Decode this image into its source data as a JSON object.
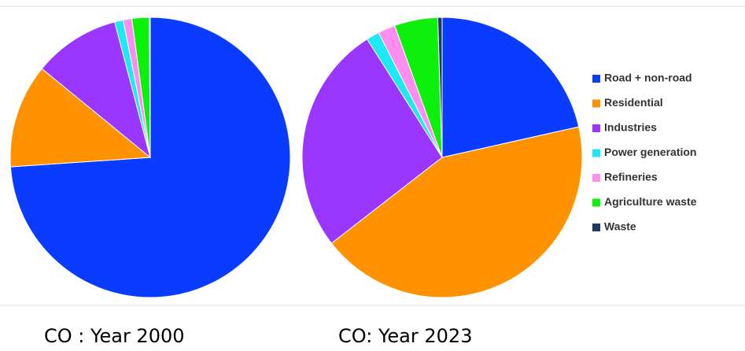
{
  "chart_data": [
    {
      "type": "pie",
      "title": "CO : Year 2000",
      "categories": [
        "Road + non-road",
        "Residential",
        "Industries",
        "Power generation",
        "Refineries",
        "Agriculture waste",
        "Waste"
      ],
      "values": [
        74,
        12,
        10,
        1,
        1,
        2,
        0.1
      ],
      "colors": [
        "#0a3cff",
        "#ff9200",
        "#9a36ff",
        "#1ce8f6",
        "#ff8ef0",
        "#0cf00c",
        "#1f3864"
      ],
      "legend": "right"
    },
    {
      "type": "pie",
      "title": "CO: Year 2023",
      "categories": [
        "Road + non-road",
        "Residential",
        "Industries",
        "Power generation",
        "Refineries",
        "Agriculture waste",
        "Waste"
      ],
      "values": [
        21.5,
        43,
        26.5,
        1.5,
        2,
        5,
        0.5
      ],
      "colors": [
        "#0a3cff",
        "#ff9200",
        "#9a36ff",
        "#1ce8f6",
        "#ff8ef0",
        "#0cf00c",
        "#1f3864"
      ],
      "legend": "right"
    }
  ]
}
